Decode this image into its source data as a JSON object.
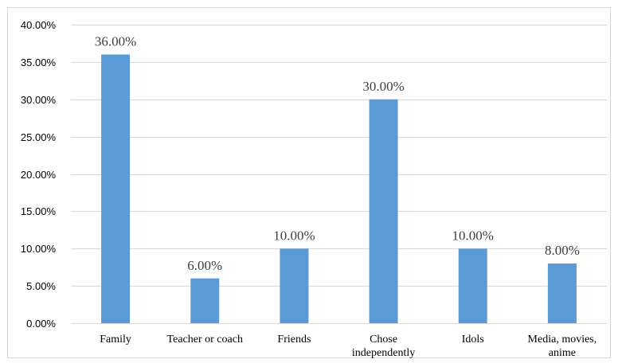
{
  "chart_data": {
    "type": "bar",
    "categories": [
      "Family",
      "Teacher or coach",
      "Friends",
      "Chose independently",
      "Idols",
      "Media, movies, anime"
    ],
    "category_lines": [
      [
        "Family"
      ],
      [
        "Teacher or coach"
      ],
      [
        "Friends"
      ],
      [
        "Chose",
        "independently"
      ],
      [
        "Idols"
      ],
      [
        "Media, movies,",
        "anime"
      ]
    ],
    "values": [
      36,
      6,
      10,
      30,
      10,
      8
    ],
    "data_labels": [
      "36.00%",
      "6.00%",
      "10.00%",
      "30.00%",
      "10.00%",
      "8.00%"
    ],
    "y_ticks": [
      0,
      5,
      10,
      15,
      20,
      25,
      30,
      35,
      40
    ],
    "y_tick_labels": [
      "0.00%",
      "5.00%",
      "10.00%",
      "15.00%",
      "20.00%",
      "25.00%",
      "30.00%",
      "35.00%",
      "40.00%"
    ],
    "ylim": [
      0,
      40
    ],
    "grid": true,
    "bar_color": "#5b9bd5",
    "grid_color": "#d9d9d9"
  }
}
